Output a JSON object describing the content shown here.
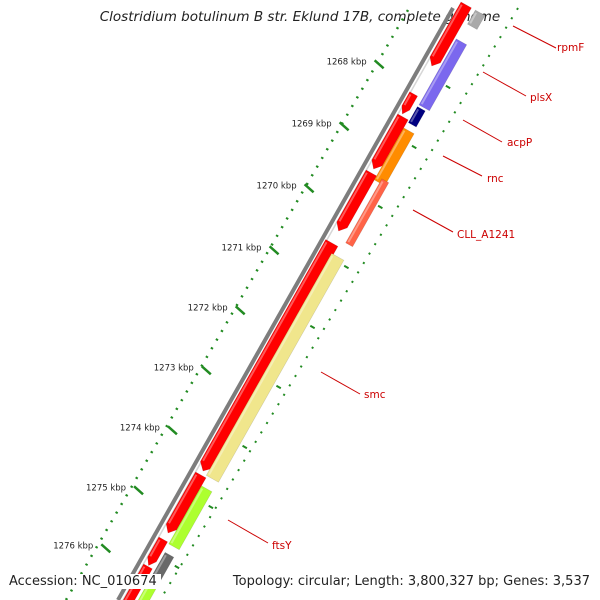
{
  "title": "Clostridium botulinum B str. Eklund 17B, complete genome",
  "accession": "Accession: NC_010674",
  "summary": "Topology: circular; Length: 3,800,327 bp; Genes: 3,537",
  "ticks": [
    "1268 kbp",
    "1269 kbp",
    "1270 kbp",
    "1271 kbp",
    "1272 kbp",
    "1273 kbp",
    "1274 kbp",
    "1275 kbp",
    "1276 kbp"
  ],
  "gene_labels": [
    "rpmF",
    "plsX",
    "acpP",
    "rnc",
    "CLL_A1241",
    "smc",
    "ftsY"
  ],
  "colors": {
    "cds_red": "#ff0000",
    "rpmF": "#a9a9a9",
    "plsX": "#7b68ee",
    "acpP": "#000080",
    "rnc": "#ff8c00",
    "CLL_A1241": "#ff6347",
    "smc": "#f0e68c",
    "ftsY": "#adff2f",
    "gray_gene": "#696969",
    "tick_green": "#228b22",
    "backbone": "#808080",
    "label_red": "#cc0000"
  }
}
